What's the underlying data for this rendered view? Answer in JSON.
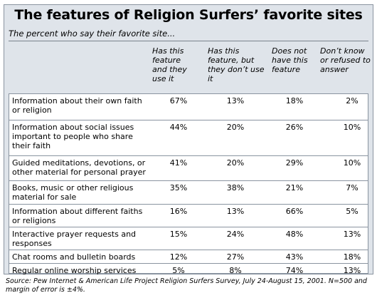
{
  "title": "The features of Religion Surfers’ favorite sites",
  "subtitle": "The percent who say their favorite site...",
  "columns": [
    "Has this feature and they use it",
    "Has this feature, but they don’t use it",
    "Does not have this feature",
    "Don’t know or refused to answer"
  ],
  "chart_data": {
    "type": "table",
    "title": "The features of Religion Surfers’ favorite sites",
    "subtitle": "The percent who say their favorite site...",
    "columns": [
      "Has this feature and they use it",
      "Has this feature, but they don’t use it",
      "Does not have this feature",
      "Don’t know or refused to answer"
    ],
    "rows": [
      {
        "label": "Information about their own faith or religion",
        "values": [
          "67%",
          "13%",
          "18%",
          "2%"
        ]
      },
      {
        "label": "Information about social issues important to people who share their faith",
        "values": [
          "44%",
          "20%",
          "26%",
          "10%"
        ]
      },
      {
        "label": "Guided meditations, devotions, or other material for personal prayer",
        "values": [
          "41%",
          "20%",
          "29%",
          "10%"
        ]
      },
      {
        "label": "Books, music or other religious material for sale",
        "values": [
          "35%",
          "38%",
          "21%",
          "7%"
        ]
      },
      {
        "label": "Information about different faiths or religions",
        "values": [
          "16%",
          "13%",
          "66%",
          "5%"
        ]
      },
      {
        "label": "Interactive prayer requests and responses",
        "values": [
          "15%",
          "24%",
          "48%",
          "13%"
        ]
      },
      {
        "label": "Chat rooms and bulletin boards",
        "values": [
          "12%",
          "27%",
          "43%",
          "18%"
        ]
      },
      {
        "label": "Regular online worship services",
        "values": [
          "5%",
          "8%",
          "74%",
          "13%"
        ]
      }
    ]
  },
  "source": "Source:  Pew Internet & American Life Project Religion Surfers Survey, July 24-August 15, 2001. N=500 and margin of error is ±4%."
}
